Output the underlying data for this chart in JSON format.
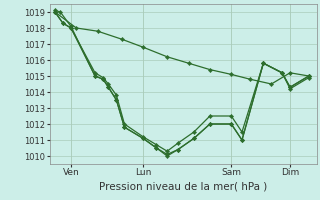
{
  "background_color": "#cceee8",
  "grid_color": "#aaccbb",
  "line_color": "#2d6e2d",
  "ylim": [
    1009.5,
    1019.5
  ],
  "yticks": [
    1010,
    1011,
    1012,
    1013,
    1014,
    1015,
    1016,
    1017,
    1018,
    1019
  ],
  "xlabel": "Pression niveau de la mer( hPa )",
  "xtick_labels": [
    "Ven",
    "Lun",
    "Sam",
    "Dim"
  ],
  "xlim": [
    0.0,
    1.0
  ],
  "xtick_positions": [
    0.08,
    0.35,
    0.68,
    0.9
  ],
  "lines": [
    {
      "x": [
        0.02,
        0.05,
        0.08,
        0.17,
        0.2,
        0.22,
        0.25,
        0.28,
        0.35,
        0.4,
        0.44,
        0.48,
        0.54,
        0.6,
        0.68,
        0.72,
        0.8,
        0.87,
        0.9,
        0.97
      ],
      "y": [
        1019.0,
        1018.3,
        1018.0,
        1015.0,
        1014.8,
        1014.3,
        1013.5,
        1011.8,
        1011.1,
        1010.5,
        1010.1,
        1010.4,
        1011.1,
        1012.0,
        1012.0,
        1011.0,
        1015.8,
        1015.2,
        1014.2,
        1014.9
      ]
    },
    {
      "x": [
        0.02,
        0.05,
        0.08,
        0.17,
        0.2,
        0.22,
        0.25,
        0.28,
        0.35,
        0.4,
        0.44,
        0.48,
        0.54,
        0.6,
        0.68,
        0.72,
        0.8,
        0.87,
        0.9,
        0.97
      ],
      "y": [
        1019.0,
        1018.3,
        1018.0,
        1015.2,
        1014.9,
        1014.5,
        1013.8,
        1012.0,
        1011.2,
        1010.7,
        1010.3,
        1010.8,
        1011.5,
        1012.5,
        1012.5,
        1011.5,
        1015.8,
        1015.2,
        1014.3,
        1015.0
      ]
    },
    {
      "x": [
        0.02,
        0.1,
        0.18,
        0.27,
        0.35,
        0.44,
        0.52,
        0.6,
        0.68,
        0.75,
        0.83,
        0.9,
        0.97
      ],
      "y": [
        1019.0,
        1018.0,
        1017.8,
        1017.3,
        1016.8,
        1016.2,
        1015.8,
        1015.4,
        1015.1,
        1014.8,
        1014.5,
        1015.2,
        1015.0
      ]
    },
    {
      "x": [
        0.02,
        0.04,
        0.08,
        0.17,
        0.2,
        0.22,
        0.25,
        0.28,
        0.35,
        0.4,
        0.44,
        0.48,
        0.54,
        0.6,
        0.68,
        0.72,
        0.8,
        0.87,
        0.9,
        0.97
      ],
      "y": [
        1019.1,
        1019.0,
        1018.1,
        1015.0,
        1014.8,
        1014.3,
        1013.5,
        1011.8,
        1011.1,
        1010.5,
        1010.0,
        1010.4,
        1011.1,
        1012.0,
        1012.0,
        1011.0,
        1015.8,
        1015.2,
        1014.3,
        1015.0
      ]
    }
  ]
}
